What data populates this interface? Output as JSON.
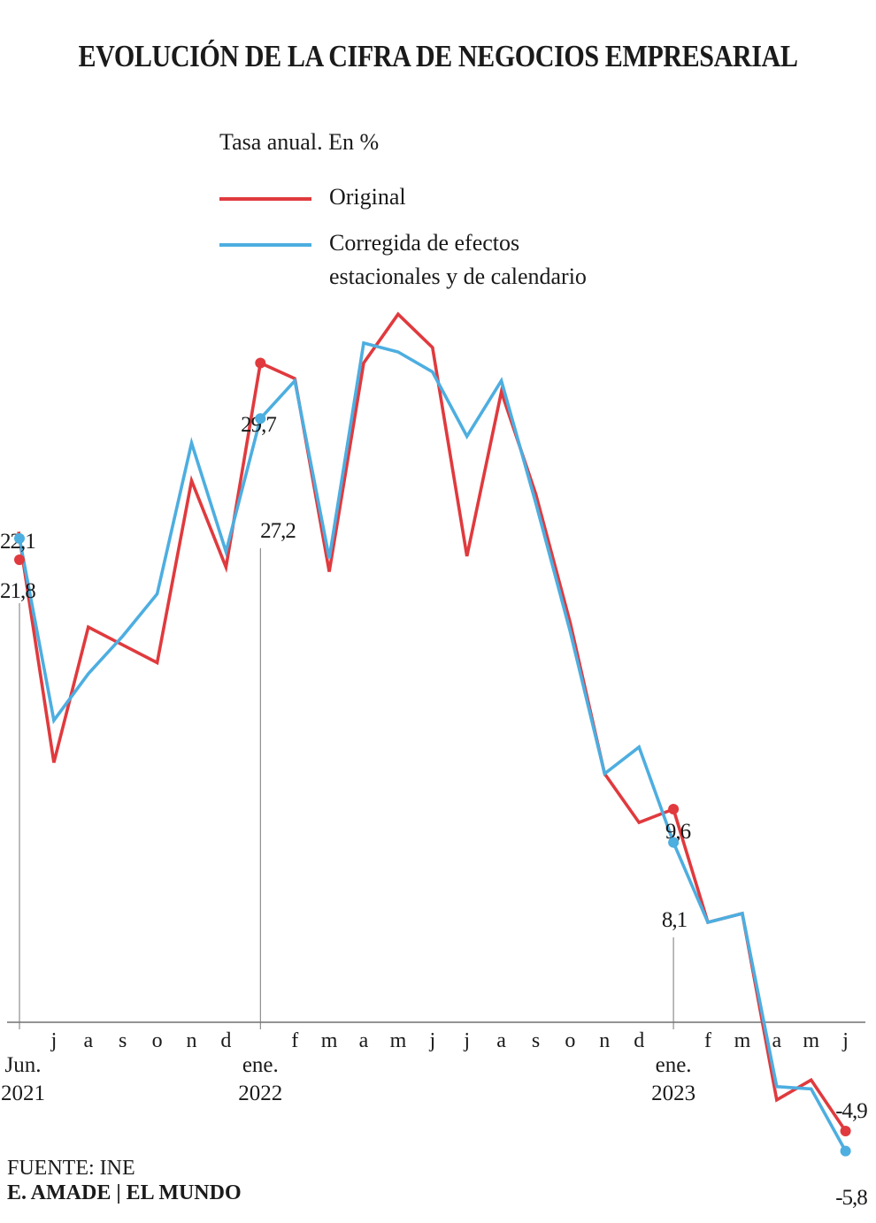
{
  "header": {
    "title": "EVOLUCIÓN DE LA CIFRA DE NEGOCIOS EMPRESARIAL",
    "subtitle": "Tasa anual. En %"
  },
  "legend": {
    "original": "Original",
    "corrected_line1": "Corregida de efectos",
    "corrected_line2": "estacionales y de calendario"
  },
  "footer": {
    "source": "FUENTE: INE",
    "credit": "E. AMADE | EL MUNDO"
  },
  "colors": {
    "original": "#e03a3e",
    "corrected": "#4daee0",
    "axis": "#555555"
  },
  "chart_data": {
    "type": "line",
    "x": [
      "Jun. 2021",
      "j",
      "a",
      "s",
      "o",
      "n",
      "d",
      "ene. 2022",
      "f",
      "m",
      "a",
      "m",
      "j",
      "j",
      "a",
      "s",
      "o",
      "n",
      "d",
      "ene. 2023",
      "f",
      "m",
      "a",
      "m",
      "j"
    ],
    "tick_labels": [
      "",
      "j",
      "a",
      "s",
      "o",
      "n",
      "d",
      "",
      "f",
      "m",
      "a",
      "m",
      "j",
      "j",
      "a",
      "s",
      "o",
      "n",
      "d",
      "",
      "f",
      "m",
      "a",
      "m",
      "j"
    ],
    "year_labels": [
      {
        "index": 0,
        "line1": "Jun.",
        "line2": "2021"
      },
      {
        "index": 7,
        "line1": "ene.",
        "line2": "2022"
      },
      {
        "index": 19,
        "line1": "ene.",
        "line2": "2023"
      }
    ],
    "ylim": [
      -8,
      34
    ],
    "series": [
      {
        "name": "Original",
        "values": [
          22.1,
          11.7,
          17.8,
          17.0,
          16.2,
          24.4,
          20.5,
          29.7,
          29.0,
          20.3,
          29.7,
          31.9,
          30.4,
          21.0,
          28.4,
          23.8,
          18.0,
          11.2,
          9.0,
          9.6,
          4.5,
          4.9,
          -3.5,
          -2.6,
          -4.9
        ]
      },
      {
        "name": "Corregida de efectos estacionales y de calendario",
        "values": [
          21.8,
          13.6,
          15.7,
          17.4,
          19.3,
          26.1,
          21.2,
          27.2,
          28.9,
          20.9,
          30.6,
          30.2,
          29.3,
          26.4,
          28.9,
          23.4,
          17.6,
          11.2,
          12.4,
          8.1,
          4.5,
          4.9,
          -2.9,
          -3.0,
          -5.8
        ]
      }
    ],
    "annotations": [
      {
        "series": 0,
        "index": 0,
        "label": "22,1"
      },
      {
        "series": 1,
        "index": 0,
        "label": "21,8"
      },
      {
        "series": 0,
        "index": 7,
        "label": "29,7"
      },
      {
        "series": 1,
        "index": 7,
        "label": "27,2"
      },
      {
        "series": 0,
        "index": 19,
        "label": "9,6"
      },
      {
        "series": 1,
        "index": 19,
        "label": "8,1"
      },
      {
        "series": 0,
        "index": 24,
        "label": "-4,9"
      },
      {
        "series": 1,
        "index": 24,
        "label": "-5,8"
      }
    ],
    "grid": false
  }
}
